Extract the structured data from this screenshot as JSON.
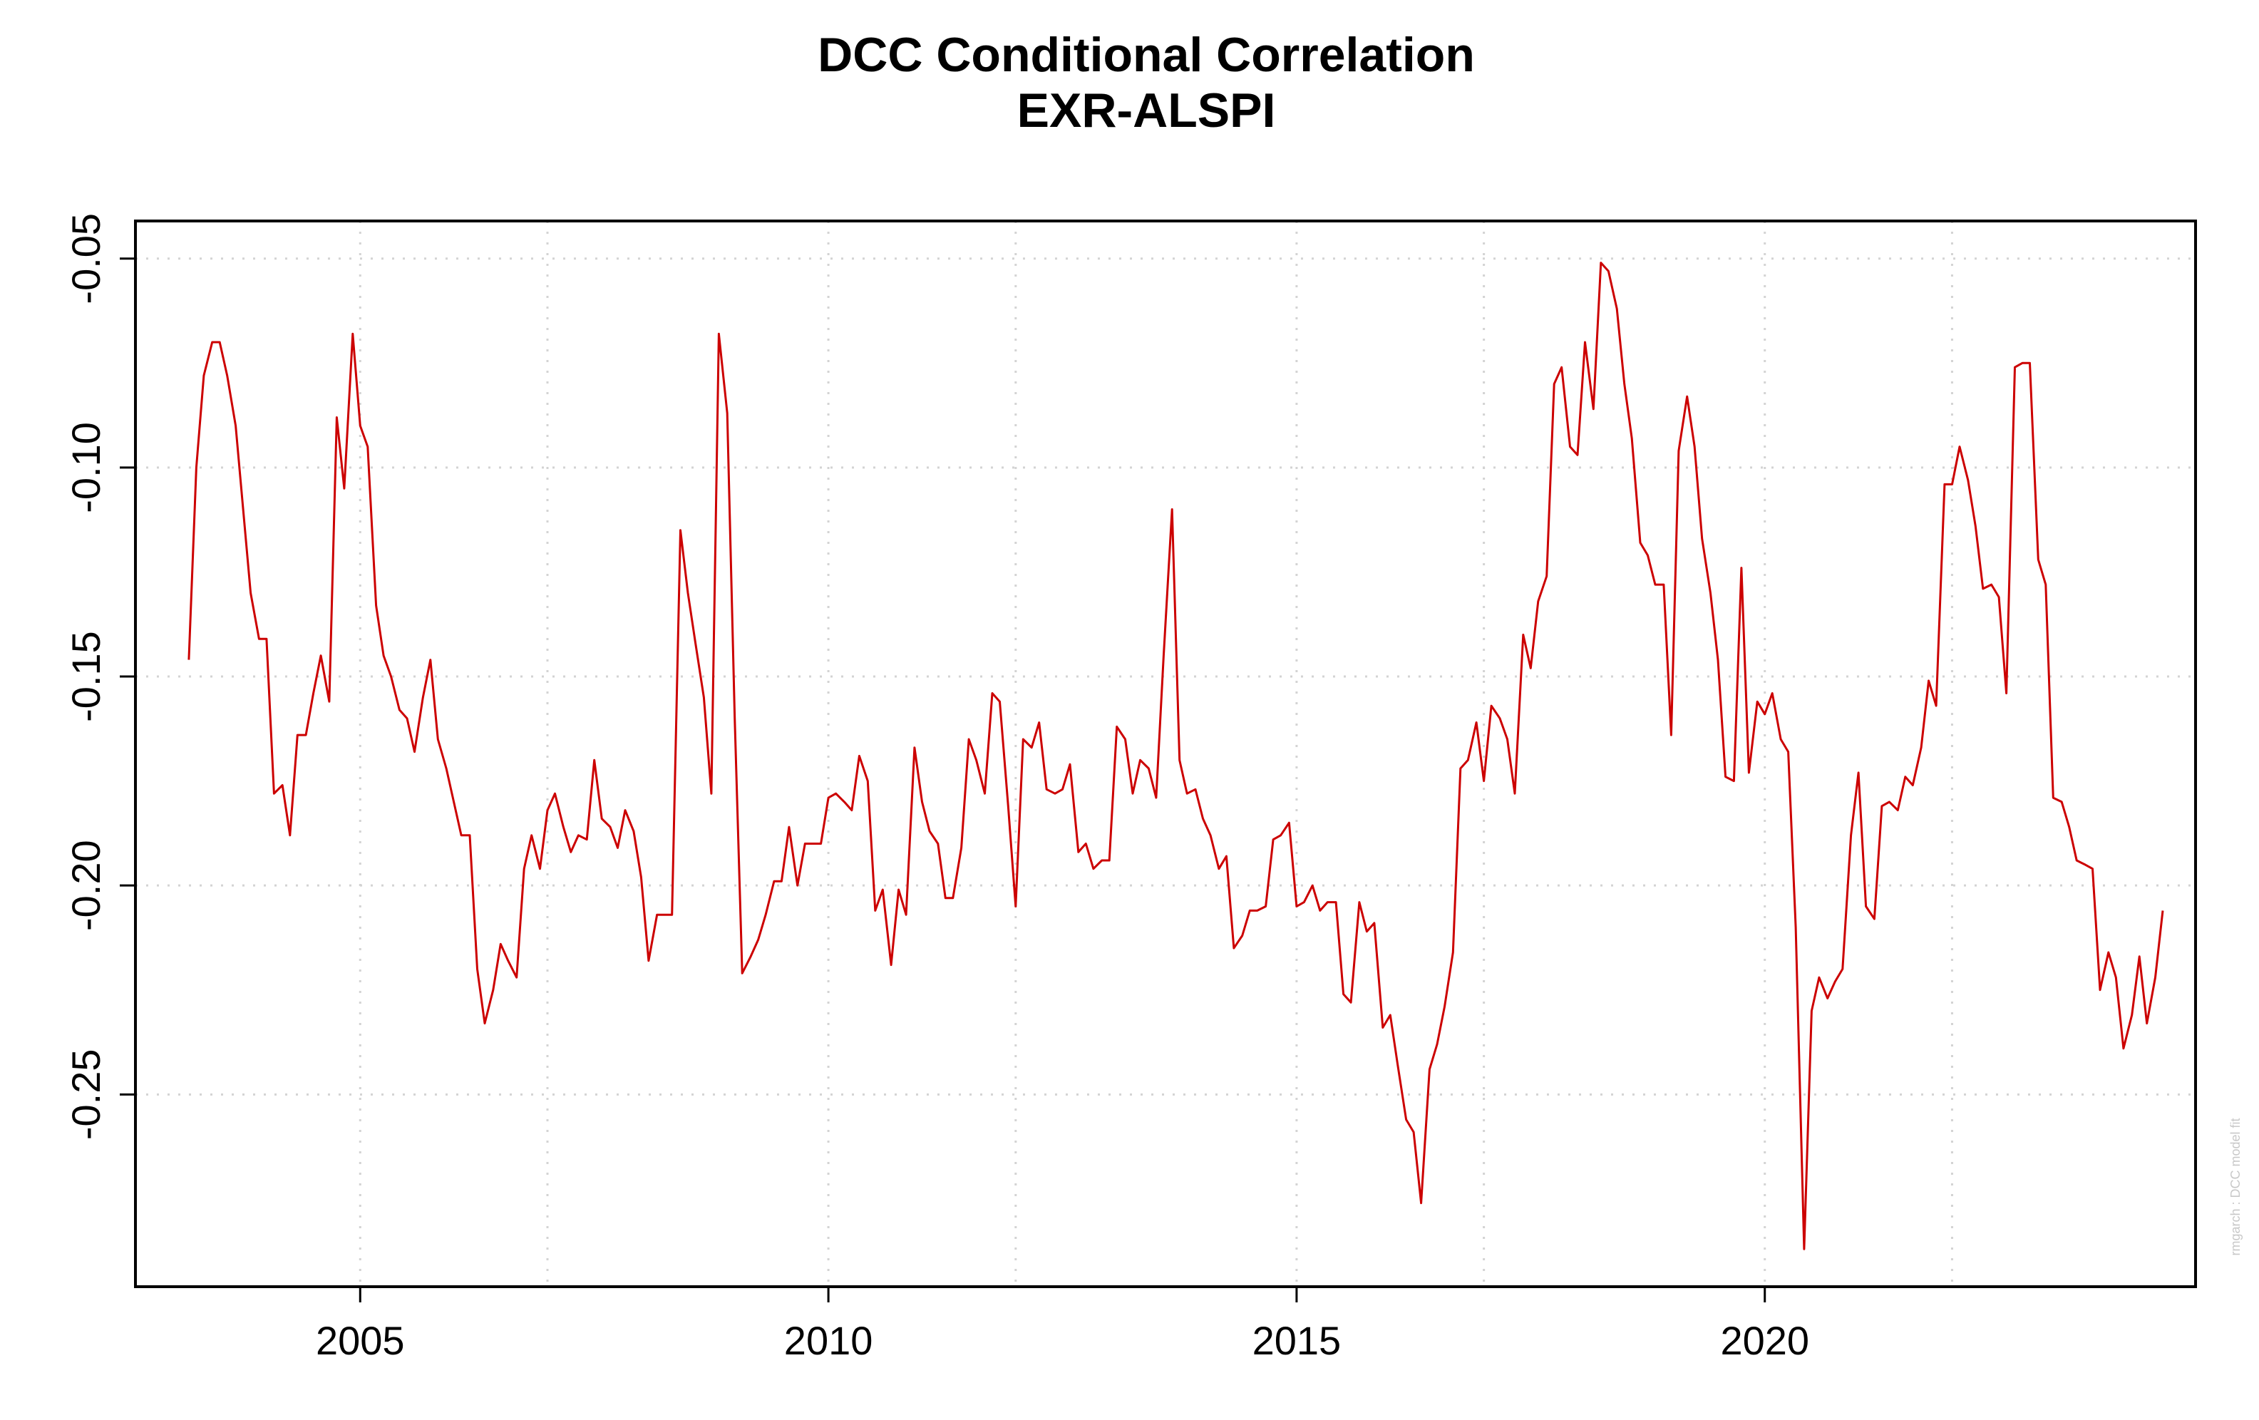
{
  "chart_data": {
    "type": "line",
    "title": "DCC Conditional Correlation",
    "subtitle": "EXR-ALSPI",
    "xlabel": "",
    "ylabel": "",
    "xlim": [
      2002.6,
      2024.6
    ],
    "ylim": [
      -0.296,
      -0.041
    ],
    "x_ticks": [
      2005,
      2010,
      2015,
      2020
    ],
    "x_tick_labels": [
      "2005",
      "2010",
      "2015",
      "2020"
    ],
    "y_ticks": [
      -0.05,
      -0.1,
      -0.15,
      -0.2,
      -0.25
    ],
    "y_tick_labels": [
      "-0.05",
      "-0.10",
      "-0.15",
      "-0.20",
      "-0.25"
    ],
    "grid": true,
    "watermark": "rmgarch : DCC model fit",
    "series": [
      {
        "name": "EXR-ALSPI",
        "color": "#cc0000",
        "points": [
          [
            2003.17,
            -0.146
          ],
          [
            2003.25,
            -0.1
          ],
          [
            2003.33,
            -0.078
          ],
          [
            2003.42,
            -0.07
          ],
          [
            2003.5,
            -0.07
          ],
          [
            2003.58,
            -0.078
          ],
          [
            2003.67,
            -0.09
          ],
          [
            2003.75,
            -0.11
          ],
          [
            2003.83,
            -0.13
          ],
          [
            2003.92,
            -0.141
          ],
          [
            2004.0,
            -0.141
          ],
          [
            2004.08,
            -0.178
          ],
          [
            2004.17,
            -0.176
          ],
          [
            2004.25,
            -0.188
          ],
          [
            2004.33,
            -0.164
          ],
          [
            2004.42,
            -0.164
          ],
          [
            2004.5,
            -0.154
          ],
          [
            2004.58,
            -0.145
          ],
          [
            2004.67,
            -0.156
          ],
          [
            2004.75,
            -0.088
          ],
          [
            2004.83,
            -0.105
          ],
          [
            2004.92,
            -0.068
          ],
          [
            2005.0,
            -0.09
          ],
          [
            2005.08,
            -0.095
          ],
          [
            2005.17,
            -0.133
          ],
          [
            2005.25,
            -0.145
          ],
          [
            2005.33,
            -0.15
          ],
          [
            2005.42,
            -0.158
          ],
          [
            2005.5,
            -0.16
          ],
          [
            2005.58,
            -0.168
          ],
          [
            2005.67,
            -0.155
          ],
          [
            2005.75,
            -0.146
          ],
          [
            2005.83,
            -0.165
          ],
          [
            2005.92,
            -0.172
          ],
          [
            2006.0,
            -0.18
          ],
          [
            2006.08,
            -0.188
          ],
          [
            2006.17,
            -0.188
          ],
          [
            2006.25,
            -0.22
          ],
          [
            2006.33,
            -0.233
          ],
          [
            2006.42,
            -0.225
          ],
          [
            2006.5,
            -0.214
          ],
          [
            2006.58,
            -0.218
          ],
          [
            2006.67,
            -0.222
          ],
          [
            2006.75,
            -0.196
          ],
          [
            2006.83,
            -0.188
          ],
          [
            2006.92,
            -0.196
          ],
          [
            2007.0,
            -0.182
          ],
          [
            2007.08,
            -0.178
          ],
          [
            2007.17,
            -0.186
          ],
          [
            2007.25,
            -0.192
          ],
          [
            2007.33,
            -0.188
          ],
          [
            2007.42,
            -0.189
          ],
          [
            2007.5,
            -0.17
          ],
          [
            2007.58,
            -0.184
          ],
          [
            2007.67,
            -0.186
          ],
          [
            2007.75,
            -0.191
          ],
          [
            2007.83,
            -0.182
          ],
          [
            2007.92,
            -0.187
          ],
          [
            2008.0,
            -0.198
          ],
          [
            2008.08,
            -0.218
          ],
          [
            2008.17,
            -0.207
          ],
          [
            2008.25,
            -0.207
          ],
          [
            2008.33,
            -0.207
          ],
          [
            2008.42,
            -0.115
          ],
          [
            2008.5,
            -0.13
          ],
          [
            2008.58,
            -0.142
          ],
          [
            2008.67,
            -0.155
          ],
          [
            2008.75,
            -0.178
          ],
          [
            2008.83,
            -0.068
          ],
          [
            2008.92,
            -0.087
          ],
          [
            2009.0,
            -0.16
          ],
          [
            2009.08,
            -0.221
          ],
          [
            2009.17,
            -0.217
          ],
          [
            2009.25,
            -0.213
          ],
          [
            2009.33,
            -0.207
          ],
          [
            2009.42,
            -0.199
          ],
          [
            2009.5,
            -0.199
          ],
          [
            2009.58,
            -0.186
          ],
          [
            2009.67,
            -0.2
          ],
          [
            2009.75,
            -0.19
          ],
          [
            2009.83,
            -0.19
          ],
          [
            2009.92,
            -0.19
          ],
          [
            2010.0,
            -0.179
          ],
          [
            2010.08,
            -0.178
          ],
          [
            2010.17,
            -0.18
          ],
          [
            2010.25,
            -0.182
          ],
          [
            2010.33,
            -0.169
          ],
          [
            2010.42,
            -0.175
          ],
          [
            2010.5,
            -0.206
          ],
          [
            2010.58,
            -0.201
          ],
          [
            2010.67,
            -0.219
          ],
          [
            2010.75,
            -0.201
          ],
          [
            2010.83,
            -0.207
          ],
          [
            2010.92,
            -0.167
          ],
          [
            2011.0,
            -0.18
          ],
          [
            2011.08,
            -0.187
          ],
          [
            2011.17,
            -0.19
          ],
          [
            2011.25,
            -0.203
          ],
          [
            2011.33,
            -0.203
          ],
          [
            2011.42,
            -0.191
          ],
          [
            2011.5,
            -0.165
          ],
          [
            2011.58,
            -0.17
          ],
          [
            2011.67,
            -0.178
          ],
          [
            2011.75,
            -0.154
          ],
          [
            2011.83,
            -0.156
          ],
          [
            2011.92,
            -0.181
          ],
          [
            2012.0,
            -0.205
          ],
          [
            2012.08,
            -0.165
          ],
          [
            2012.17,
            -0.167
          ],
          [
            2012.25,
            -0.161
          ],
          [
            2012.33,
            -0.177
          ],
          [
            2012.42,
            -0.178
          ],
          [
            2012.5,
            -0.177
          ],
          [
            2012.58,
            -0.171
          ],
          [
            2012.67,
            -0.192
          ],
          [
            2012.75,
            -0.19
          ],
          [
            2012.83,
            -0.196
          ],
          [
            2012.92,
            -0.194
          ],
          [
            2013.0,
            -0.194
          ],
          [
            2013.08,
            -0.162
          ],
          [
            2013.17,
            -0.165
          ],
          [
            2013.25,
            -0.178
          ],
          [
            2013.33,
            -0.17
          ],
          [
            2013.42,
            -0.172
          ],
          [
            2013.5,
            -0.179
          ],
          [
            2013.58,
            -0.145
          ],
          [
            2013.67,
            -0.11
          ],
          [
            2013.75,
            -0.17
          ],
          [
            2013.83,
            -0.178
          ],
          [
            2013.92,
            -0.177
          ],
          [
            2014.0,
            -0.184
          ],
          [
            2014.08,
            -0.188
          ],
          [
            2014.17,
            -0.196
          ],
          [
            2014.25,
            -0.193
          ],
          [
            2014.33,
            -0.215
          ],
          [
            2014.42,
            -0.212
          ],
          [
            2014.5,
            -0.206
          ],
          [
            2014.58,
            -0.206
          ],
          [
            2014.67,
            -0.205
          ],
          [
            2014.75,
            -0.189
          ],
          [
            2014.83,
            -0.188
          ],
          [
            2014.92,
            -0.185
          ],
          [
            2015.0,
            -0.205
          ],
          [
            2015.08,
            -0.204
          ],
          [
            2015.17,
            -0.2
          ],
          [
            2015.25,
            -0.206
          ],
          [
            2015.33,
            -0.204
          ],
          [
            2015.42,
            -0.204
          ],
          [
            2015.5,
            -0.226
          ],
          [
            2015.58,
            -0.228
          ],
          [
            2015.67,
            -0.204
          ],
          [
            2015.75,
            -0.211
          ],
          [
            2015.83,
            -0.209
          ],
          [
            2015.92,
            -0.234
          ],
          [
            2016.0,
            -0.231
          ],
          [
            2016.08,
            -0.243
          ],
          [
            2016.17,
            -0.256
          ],
          [
            2016.25,
            -0.259
          ],
          [
            2016.33,
            -0.276
          ],
          [
            2016.42,
            -0.244
          ],
          [
            2016.5,
            -0.238
          ],
          [
            2016.58,
            -0.229
          ],
          [
            2016.67,
            -0.216
          ],
          [
            2016.75,
            -0.172
          ],
          [
            2016.83,
            -0.17
          ],
          [
            2016.92,
            -0.161
          ],
          [
            2017.0,
            -0.175
          ],
          [
            2017.08,
            -0.157
          ],
          [
            2017.17,
            -0.16
          ],
          [
            2017.25,
            -0.165
          ],
          [
            2017.33,
            -0.178
          ],
          [
            2017.42,
            -0.14
          ],
          [
            2017.5,
            -0.148
          ],
          [
            2017.58,
            -0.132
          ],
          [
            2017.67,
            -0.126
          ],
          [
            2017.75,
            -0.08
          ],
          [
            2017.83,
            -0.076
          ],
          [
            2017.92,
            -0.095
          ],
          [
            2018.0,
            -0.097
          ],
          [
            2018.08,
            -0.07
          ],
          [
            2018.17,
            -0.086
          ],
          [
            2018.25,
            -0.051
          ],
          [
            2018.33,
            -0.053
          ],
          [
            2018.42,
            -0.062
          ],
          [
            2018.5,
            -0.08
          ],
          [
            2018.58,
            -0.093
          ],
          [
            2018.67,
            -0.118
          ],
          [
            2018.75,
            -0.121
          ],
          [
            2018.83,
            -0.128
          ],
          [
            2018.92,
            -0.128
          ],
          [
            2019.0,
            -0.164
          ],
          [
            2019.08,
            -0.096
          ],
          [
            2019.17,
            -0.083
          ],
          [
            2019.25,
            -0.095
          ],
          [
            2019.33,
            -0.117
          ],
          [
            2019.42,
            -0.13
          ],
          [
            2019.5,
            -0.146
          ],
          [
            2019.58,
            -0.174
          ],
          [
            2019.67,
            -0.175
          ],
          [
            2019.75,
            -0.124
          ],
          [
            2019.83,
            -0.173
          ],
          [
            2019.92,
            -0.156
          ],
          [
            2020.0,
            -0.159
          ],
          [
            2020.08,
            -0.154
          ],
          [
            2020.17,
            -0.165
          ],
          [
            2020.25,
            -0.168
          ],
          [
            2020.33,
            -0.21
          ],
          [
            2020.42,
            -0.287
          ],
          [
            2020.5,
            -0.23
          ],
          [
            2020.58,
            -0.222
          ],
          [
            2020.67,
            -0.227
          ],
          [
            2020.75,
            -0.223
          ],
          [
            2020.83,
            -0.22
          ],
          [
            2020.92,
            -0.188
          ],
          [
            2021.0,
            -0.173
          ],
          [
            2021.08,
            -0.205
          ],
          [
            2021.17,
            -0.208
          ],
          [
            2021.25,
            -0.181
          ],
          [
            2021.33,
            -0.18
          ],
          [
            2021.42,
            -0.182
          ],
          [
            2021.5,
            -0.174
          ],
          [
            2021.58,
            -0.176
          ],
          [
            2021.67,
            -0.167
          ],
          [
            2021.75,
            -0.151
          ],
          [
            2021.83,
            -0.157
          ],
          [
            2021.92,
            -0.104
          ],
          [
            2022.0,
            -0.104
          ],
          [
            2022.08,
            -0.095
          ],
          [
            2022.17,
            -0.103
          ],
          [
            2022.25,
            -0.114
          ],
          [
            2022.33,
            -0.129
          ],
          [
            2022.42,
            -0.128
          ],
          [
            2022.5,
            -0.131
          ],
          [
            2022.58,
            -0.154
          ],
          [
            2022.67,
            -0.076
          ],
          [
            2022.75,
            -0.075
          ],
          [
            2022.83,
            -0.075
          ],
          [
            2022.92,
            -0.122
          ],
          [
            2023.0,
            -0.128
          ],
          [
            2023.08,
            -0.179
          ],
          [
            2023.17,
            -0.18
          ],
          [
            2023.25,
            -0.186
          ],
          [
            2023.33,
            -0.194
          ],
          [
            2023.42,
            -0.195
          ],
          [
            2023.5,
            -0.196
          ],
          [
            2023.58,
            -0.225
          ],
          [
            2023.67,
            -0.216
          ],
          [
            2023.75,
            -0.222
          ],
          [
            2023.83,
            -0.239
          ],
          [
            2023.92,
            -0.231
          ],
          [
            2024.0,
            -0.217
          ],
          [
            2024.08,
            -0.233
          ],
          [
            2024.17,
            -0.222
          ],
          [
            2024.25,
            -0.206
          ]
        ]
      }
    ]
  }
}
